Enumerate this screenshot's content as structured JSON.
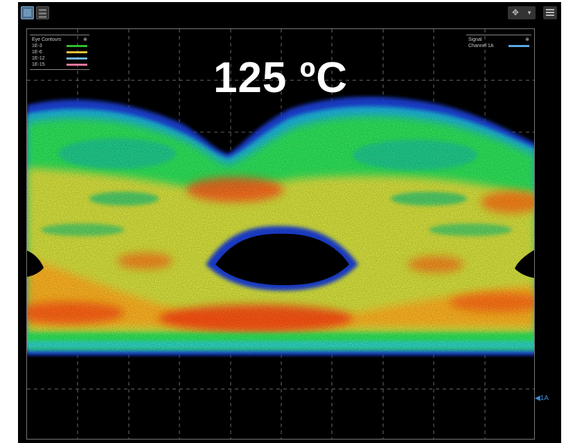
{
  "toolbar": {
    "pan_symbol": "✥",
    "caret": "▼"
  },
  "overlay": {
    "temperature_label": "125 ºC"
  },
  "legend_left": {
    "title": "Eye Contours",
    "collapse_symbol": "⊗",
    "items": [
      {
        "label": "1E-3",
        "color": "#2fbf2f"
      },
      {
        "label": "1E-6",
        "color": "#e8c23a"
      },
      {
        "label": "1E-12",
        "color": "#6fb7e8"
      },
      {
        "label": "1E-15",
        "color": "#e8789b"
      }
    ]
  },
  "legend_right": {
    "title": "Signal",
    "collapse_symbol": "⊗",
    "items": [
      {
        "label": "Channel 1A",
        "color": "#5aa9e6"
      }
    ]
  },
  "marker": {
    "label": "◀1A",
    "color": "#3b8fd9"
  },
  "colors": {
    "background": "#000000",
    "grid": "#9a9a9a",
    "accent": "#4a6f8f"
  }
}
